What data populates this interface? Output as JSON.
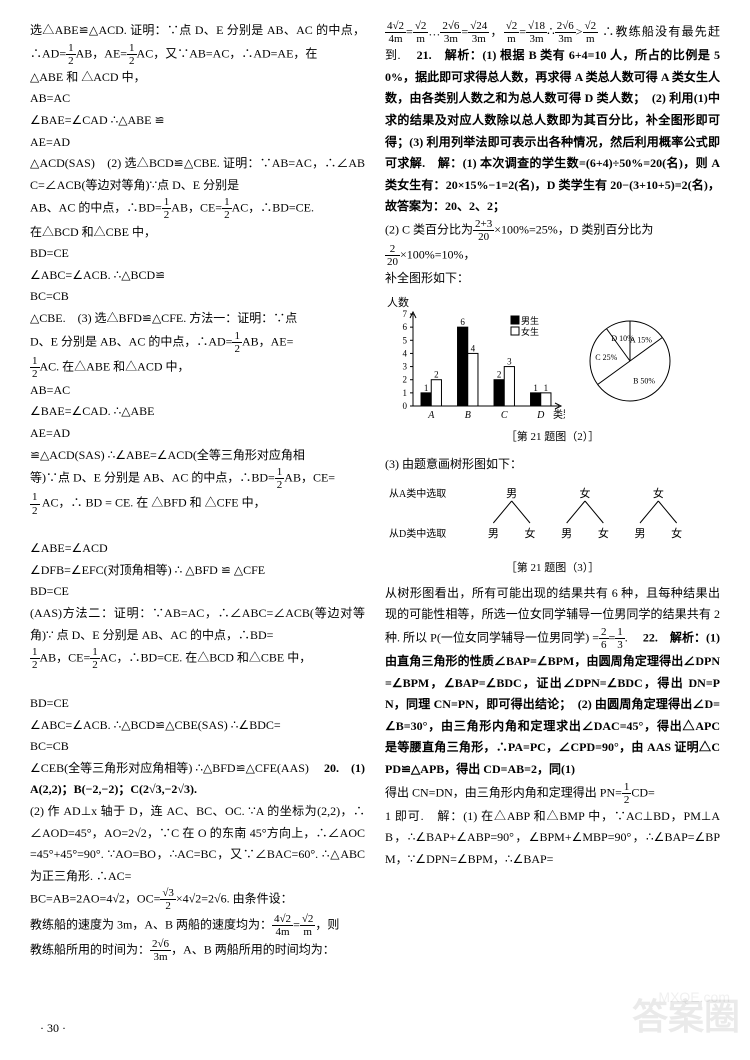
{
  "page_number": "· 30 ·",
  "watermark": "答案圈",
  "watermark_url": "MXQE.com",
  "left": {
    "p1a": "选△ABE≌△ACD. 证明：∵点 D、E 分别是 AB、AC 的中点，",
    "p1b": "∴AD=",
    "p1c": "AB，AE=",
    "p1d": "AC，又∵AB=AC，∴AD=AE，在",
    "p2a": "△ABE 和 △ACD 中，",
    "sys1": [
      "AB=AC",
      "∠BAE=∠CAD ∴△ABE ≌",
      "AE=AD"
    ],
    "p3": "△ACD(SAS)　(2) 选△BCD≌△CBE. 证明：∵AB=AC，∴∠ABC=∠ACB(等边对等角)∵点 D、E 分别是",
    "p4a": "AB、AC 的中点，∴BD=",
    "p4b": "AB，CE=",
    "p4c": "AC，∴BD=CE.",
    "p5": "在△BCD 和△CBE 中，",
    "sys2": [
      "BD=CE",
      "∠ABC=∠ACB. ∴△BCD≌",
      "BC=CB"
    ],
    "p6": "△CBE.　(3) 选△BFD≌△CFE. 方法一：证明：∵点",
    "p7a": "D、E 分别是 AB、AC 的中点，∴AD=",
    "p7b": "AB，AE=",
    "p8a": "AC. 在△ABE 和△ACD 中，",
    "sys3": [
      "AB=AC",
      "∠BAE=∠CAD. ∴△ABE",
      "AE=AD"
    ],
    "p9": "≌△ACD(SAS) ∴∠ABE=∠ACD(全等三角形对应角相",
    "p10a": "等)∵点 D、E 分别是 AB、AC 的中点，∴BD=",
    "p10b": "AB，CE=",
    "p11": "AC，∴ BD = CE. 在 △BFD 和 △CFE 中，",
    "sys4": [
      "∠ABE=∠ACD",
      "∠DFB=∠EFC(对顶角相等) ∴ △BFD ≌ △CFE",
      "BD=CE"
    ],
    "p12": "(AAS)方法二：证明：∵AB=AC，∴∠ABC=∠ACB(等边对等角)∵ 点 D、E 分别是 AB、AC 的中点，∴BD=",
    "p13a": "AB，CE=",
    "p13b": "AC，∴BD=CE. 在△BCD 和△CBE 中，",
    "sys5": [
      "BD=CE",
      "∠ABC=∠ACB. ∴△BCD≌△CBE(SAS) ∴∠BDC=",
      "BC=CB"
    ],
    "p14": "∠CEB(全等三角形对应角相等) ∴△BFD≌△CFE(AAS)",
    "q20": "　20.　(1) A(2,2)；B(−2,−2)；C(2√3,−2√3).",
    "p15": "(2) 作 AD⊥x 轴于 D，连 AC、BC、OC. ∵A 的坐标为(2,2)，∴∠AOD=45°，AO=2√2，∵C 在 O 的东南 45°方向上，∴∠AOC=45°+45°=90°. ∵AO=BO，∴AC=BC，又∵∠BAC=60°. ∴△ABC 为正三角形. ∴AC=",
    "p16a": "BC=AB=2AO=4√2，OC=",
    "frac_sqrt3_2": {
      "n": "√3",
      "d": "2"
    },
    "p16b": "×4√2=2√6. 由条件设：",
    "p17a": "教练船的速度为 3m，A、B 两船的速度均为：",
    "frac_4r2_4m": {
      "n": "4√2",
      "d": "4m"
    },
    "eq1": "=",
    "frac_r2_m": {
      "n": "√2",
      "d": "m"
    },
    "p17b": "，则",
    "p18a": "教练船所用的时间为：",
    "frac_2r6_3m": {
      "n": "2√6",
      "d": "3m"
    },
    "p18b": "，A、B 两船所用的时间均为："
  },
  "right": {
    "r1a": "=",
    "r1b": "…",
    "r1c": "=",
    "r1d": "，",
    "r1e": "=",
    "r1f": "∴",
    "r1g": ">",
    "fr1": {
      "n": "4√2",
      "d": "4m"
    },
    "fr2": {
      "n": "√2",
      "d": "m"
    },
    "fr3": {
      "n": "2√6",
      "d": "3m"
    },
    "fr4": {
      "n": "√24",
      "d": "3m"
    },
    "fr5": {
      "n": "√2",
      "d": "m"
    },
    "fr6": {
      "n": "√18",
      "d": "3m"
    },
    "fr7": {
      "n": "2√6",
      "d": "3m"
    },
    "fr8": {
      "n": "√2",
      "d": "m"
    },
    "r1end": "∴教练船没有最先赶到.",
    "q21": "　21.　解析：(1) 根据 B 类有 6+4=10 人，所占的比例是 50%，据此即可求得总人数，再求得 A 类总人数可得 A 类女生人数，由各类别人数之和为总人数可得 D 类人数；　(2) 利用(1)中求的结果及对应人数除以总人数即为其百分比，补全图形即可得；(3) 利用列举法即可表示出各种情况，然后利用概率公式即可求解.　解：(1) 本次调查的学生数=(6+4)÷50%=20(名)，则 A 类女生有：20×15%−1=2(名)，D 类学生有 20−(3+10+5)=2(名)，故答案为：20、2、2；",
    "r2a": "(2) C 类百分比为",
    "frC": {
      "n": "2+3",
      "d": "20"
    },
    "r2b": "×100%=25%，D 类别百分比为",
    "r3a": "×100%=10%，",
    "frD": {
      "n": "2",
      "d": "20"
    },
    "r4": "补全图形如下：",
    "chart": {
      "type": "bar",
      "ylabel": "人数",
      "xlabel": "类别",
      "ymax": 7,
      "yticks": [
        0,
        1,
        2,
        3,
        4,
        5,
        6,
        7
      ],
      "categories": [
        "A",
        "B",
        "C",
        "D"
      ],
      "boys": [
        1,
        6,
        2,
        1
      ],
      "girls": [
        2,
        4,
        3,
        1
      ],
      "boy_color": "#000000",
      "girl_color": "#ffffff",
      "border_color": "#000000",
      "width": 180,
      "height": 130,
      "legend": [
        "男生",
        "女生"
      ]
    },
    "pie": {
      "slices": [
        {
          "label": "A",
          "pct": 15,
          "text": "A 15%"
        },
        {
          "label": "B",
          "pct": 50,
          "text": "B 50%"
        },
        {
          "label": "C",
          "pct": 25,
          "text": "C 25%"
        },
        {
          "label": "D",
          "pct": 10,
          "text": "D 10%"
        }
      ],
      "stroke": "#000000",
      "fill": "#ffffff",
      "size": 100
    },
    "cap2": "［第 21 题图（2）］",
    "r5": "(3) 由题意画树形图如下：",
    "tree": {
      "row1_label": "从A类中选取",
      "row1": [
        "男",
        "女",
        "女"
      ],
      "row2_label": "从D类中选取",
      "row2": [
        "男",
        "女",
        "男",
        "女",
        "男",
        "女"
      ]
    },
    "cap3": "［第 21 题图（3）］",
    "r6a": "从树形图看出，所有可能出现的结果共有 6 种，且每种结果出现的可能性相等，所选一位女同学辅导一位男同学的结果共有 2 种. 所以 P(一位女同学辅导一位男同学)",
    "r6b": "=",
    "fr26": {
      "n": "2",
      "d": "6"
    },
    "r6c": "=",
    "fr13": {
      "n": "1",
      "d": "3"
    },
    "r6d": ".",
    "q22": "　22.　解析：(1) 由直角三角形的性质∠BAP=∠BPM，由圆周角定理得出∠DPN=∠BPM，∠BAP=∠BDC，证出∠DPN=∠BDC，得出 DN=PN，同理 CN=PN，即可得出结论；　(2) 由圆周角定理得出∠D=∠B=30°，由三角形内角和定理求出∠DAC=45°，得出△APC 是等腰直角三角形，∴PA=PC，∠CPD=90°，由 AAS 证明△CPD≌△APB，得出 CD=AB=2，同(1)",
    "r7a": "得出 CN=DN，由三角形内角和定理得出 PN=",
    "r7b": "CD=",
    "r8": "1 即可.　解：(1) 在△ABP 和△BMP 中，∵AC⊥BD，PM⊥AB，∴∠BAP+∠ABP=90°，∠BPM+∠MBP=90°，∴∠BAP=∠BPM，∵∠DPN=∠BPM，∴∠BAP="
  },
  "half": {
    "n": "1",
    "d": "2"
  }
}
